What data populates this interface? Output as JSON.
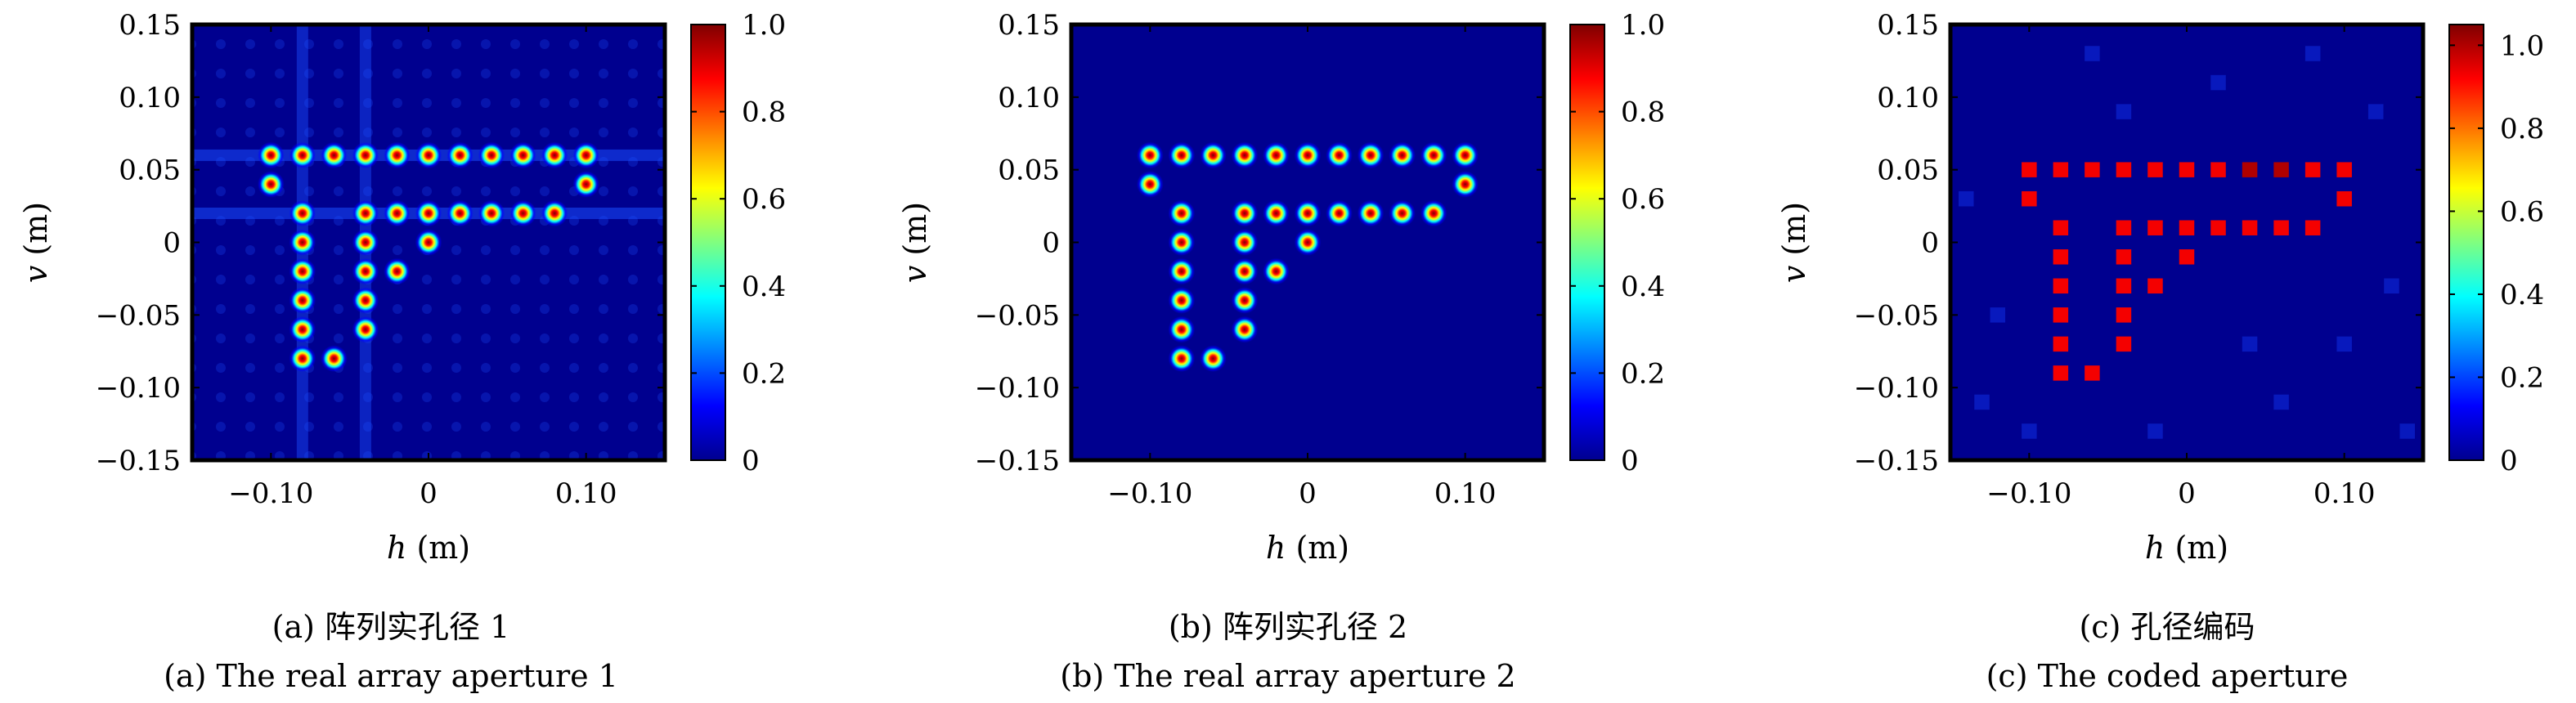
{
  "chart_data": [
    {
      "type": "heatmap",
      "caption_cn": "(a) 阵列实孔径 1",
      "caption_en": "(a) The real array aperture 1",
      "xlabel_var": "h",
      "xlabel_unit": " (m)",
      "ylabel_var": "v",
      "ylabel_unit": " (m)",
      "xlim": [
        -0.15,
        0.15
      ],
      "ylim": [
        -0.15,
        0.15
      ],
      "xticks": [
        -0.1,
        0,
        0.1
      ],
      "xtick_labels": [
        "−0.10",
        "0",
        "0.10"
      ],
      "yticks": [
        -0.15,
        -0.1,
        -0.05,
        0,
        0.05,
        0.1,
        0.15
      ],
      "ytick_labels": [
        "−0.15",
        "−0.10",
        "−0.05",
        "0",
        "0.05",
        "0.10",
        "0.15"
      ],
      "colorbar": {
        "min": 0,
        "max": 1.0,
        "ticks": [
          0,
          0.2,
          0.4,
          0.6,
          0.8,
          1.0
        ],
        "tick_labels": [
          "0",
          "0.2",
          "0.4",
          "0.6",
          "0.8",
          "1.0"
        ]
      },
      "points": [
        [
          -0.1,
          0.06
        ],
        [
          -0.08,
          0.06
        ],
        [
          -0.06,
          0.06
        ],
        [
          -0.04,
          0.06
        ],
        [
          -0.02,
          0.06
        ],
        [
          0,
          0.06
        ],
        [
          0.02,
          0.06
        ],
        [
          0.04,
          0.06
        ],
        [
          0.06,
          0.06
        ],
        [
          0.08,
          0.06
        ],
        [
          0.1,
          0.06
        ],
        [
          -0.1,
          0.04
        ],
        [
          0.1,
          0.04
        ],
        [
          -0.08,
          0.02
        ],
        [
          -0.04,
          0.02
        ],
        [
          -0.02,
          0.02
        ],
        [
          0,
          0.02
        ],
        [
          0.02,
          0.02
        ],
        [
          0.04,
          0.02
        ],
        [
          0.06,
          0.02
        ],
        [
          0.08,
          0.02
        ],
        [
          -0.08,
          0
        ],
        [
          -0.04,
          0
        ],
        [
          0,
          0
        ],
        [
          -0.08,
          -0.02
        ],
        [
          -0.04,
          -0.02
        ],
        [
          -0.02,
          -0.02
        ],
        [
          -0.08,
          -0.04
        ],
        [
          -0.04,
          -0.04
        ],
        [
          -0.08,
          -0.06
        ],
        [
          -0.04,
          -0.06
        ],
        [
          -0.08,
          -0.08
        ],
        [
          -0.06,
          -0.08
        ]
      ]
    },
    {
      "type": "heatmap",
      "caption_cn": "(b) 阵列实孔径 2",
      "caption_en": "(b) The real array aperture 2",
      "xlabel_var": "h",
      "xlabel_unit": " (m)",
      "ylabel_var": "v",
      "ylabel_unit": " (m)",
      "xlim": [
        -0.15,
        0.15
      ],
      "ylim": [
        -0.15,
        0.15
      ],
      "xticks": [
        -0.1,
        0,
        0.1
      ],
      "xtick_labels": [
        "−0.10",
        "0",
        "0.10"
      ],
      "yticks": [
        -0.15,
        -0.1,
        -0.05,
        0,
        0.05,
        0.1,
        0.15
      ],
      "ytick_labels": [
        "−0.15",
        "−0.10",
        "−0.05",
        "0",
        "0.05",
        "0.10",
        "0.15"
      ],
      "colorbar": {
        "min": 0,
        "max": 1.0,
        "ticks": [
          0,
          0.2,
          0.4,
          0.6,
          0.8,
          1.0
        ],
        "tick_labels": [
          "0",
          "0.2",
          "0.4",
          "0.6",
          "0.8",
          "1.0"
        ]
      },
      "points": [
        [
          -0.1,
          0.06
        ],
        [
          -0.08,
          0.06
        ],
        [
          -0.06,
          0.06
        ],
        [
          -0.04,
          0.06
        ],
        [
          -0.02,
          0.06
        ],
        [
          0,
          0.06
        ],
        [
          0.02,
          0.06
        ],
        [
          0.04,
          0.06
        ],
        [
          0.06,
          0.06
        ],
        [
          0.08,
          0.06
        ],
        [
          0.1,
          0.06
        ],
        [
          -0.1,
          0.04
        ],
        [
          0.1,
          0.04
        ],
        [
          -0.08,
          0.02
        ],
        [
          -0.04,
          0.02
        ],
        [
          -0.02,
          0.02
        ],
        [
          0,
          0.02
        ],
        [
          0.02,
          0.02
        ],
        [
          0.04,
          0.02
        ],
        [
          0.06,
          0.02
        ],
        [
          0.08,
          0.02
        ],
        [
          -0.08,
          0
        ],
        [
          -0.04,
          0
        ],
        [
          0,
          0
        ],
        [
          -0.08,
          -0.02
        ],
        [
          -0.04,
          -0.02
        ],
        [
          -0.02,
          -0.02
        ],
        [
          -0.08,
          -0.04
        ],
        [
          -0.04,
          -0.04
        ],
        [
          -0.08,
          -0.06
        ],
        [
          -0.04,
          -0.06
        ],
        [
          -0.08,
          -0.08
        ],
        [
          -0.06,
          -0.08
        ]
      ]
    },
    {
      "type": "heatmap",
      "caption_cn": "(c) 孔径编码",
      "caption_en": "(c) The coded aperture",
      "xlabel_var": "h",
      "xlabel_unit": " (m)",
      "ylabel_var": "v",
      "ylabel_unit": " (m)",
      "xlim": [
        -0.15,
        0.15
      ],
      "ylim": [
        -0.15,
        0.15
      ],
      "xticks": [
        -0.1,
        0,
        0.1
      ],
      "xtick_labels": [
        "−0.10",
        "0",
        "0.10"
      ],
      "yticks": [
        -0.15,
        -0.1,
        -0.05,
        0,
        0.05,
        0.1,
        0.15
      ],
      "ytick_labels": [
        "−0.15",
        "−0.10",
        "−0.05",
        "0",
        "0.05",
        "0.10",
        "0.15"
      ],
      "colorbar": {
        "min": 0,
        "max": 1.05,
        "ticks": [
          0,
          0.2,
          0.4,
          0.6,
          0.8,
          1.0
        ],
        "tick_labels": [
          "0",
          "0.2",
          "0.4",
          "0.6",
          "0.8",
          "1.0"
        ]
      },
      "points": [
        [
          -0.1,
          0.05
        ],
        [
          -0.08,
          0.05
        ],
        [
          -0.06,
          0.05
        ],
        [
          -0.04,
          0.05
        ],
        [
          -0.02,
          0.05
        ],
        [
          0,
          0.05
        ],
        [
          0.02,
          0.05
        ],
        [
          0.04,
          0.05
        ],
        [
          0.06,
          0.05
        ],
        [
          0.08,
          0.05
        ],
        [
          0.1,
          0.05
        ],
        [
          -0.1,
          0.03
        ],
        [
          0.1,
          0.03
        ],
        [
          -0.08,
          0.01
        ],
        [
          -0.04,
          0.01
        ],
        [
          -0.02,
          0.01
        ],
        [
          0,
          0.01
        ],
        [
          0.02,
          0.01
        ],
        [
          0.04,
          0.01
        ],
        [
          0.06,
          0.01
        ],
        [
          0.08,
          0.01
        ],
        [
          -0.08,
          -0.01
        ],
        [
          -0.04,
          -0.01
        ],
        [
          0,
          -0.01
        ],
        [
          -0.08,
          -0.03
        ],
        [
          -0.04,
          -0.03
        ],
        [
          -0.02,
          -0.03
        ],
        [
          -0.08,
          -0.05
        ],
        [
          -0.04,
          -0.05
        ],
        [
          -0.08,
          -0.07
        ],
        [
          -0.04,
          -0.07
        ],
        [
          -0.08,
          -0.09
        ],
        [
          -0.06,
          -0.09
        ]
      ],
      "point_values": [
        0.93,
        0.93,
        0.93,
        0.93,
        0.93,
        0.93,
        0.93,
        1.0,
        1.0,
        0.93,
        0.93,
        0.93,
        0.93,
        0.93,
        0.93,
        0.93,
        0.93,
        0.93,
        0.93,
        0.93,
        0.93,
        0.93,
        0.93,
        0.93,
        0.93,
        0.93,
        0.93,
        0.93,
        0.93,
        0.93,
        0.93,
        0.93,
        0.93
      ]
    }
  ]
}
